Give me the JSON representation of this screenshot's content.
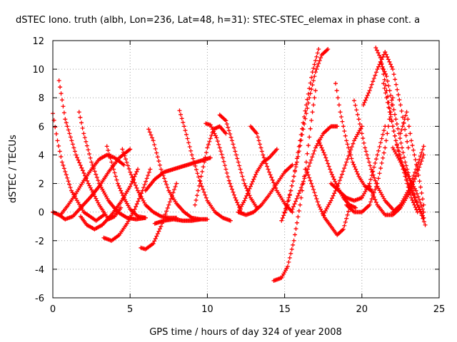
{
  "chart_data": {
    "type": "scatter",
    "title": "dSTEC Iono. truth (albh, Lon=236, Lat=48, h=31): STEC-STEC_elemax in phase cont. a",
    "xlabel": "GPS time / hours of day 324 of year 2008",
    "ylabel": "dSTEC  / TECUs",
    "xlim": [
      0,
      25
    ],
    "ylim": [
      -6,
      12
    ],
    "xticks": [
      "0",
      "5",
      "10",
      "15",
      "20",
      "25"
    ],
    "yticks": [
      "-6",
      "-4",
      "-2",
      "0",
      "2",
      "4",
      "6",
      "8",
      "10",
      "12"
    ],
    "grid": true,
    "marker": "plus",
    "color": "#ff0000",
    "series": [
      {
        "x": [
          0.0,
          0.3,
          0.6,
          1.2,
          2.0,
          2.8,
          3.3
        ],
        "y": [
          6.9,
          5.0,
          3.5,
          1.5,
          0.0,
          -0.6,
          -0.2
        ]
      },
      {
        "x": [
          0.4,
          0.8,
          1.5,
          2.3,
          3.0,
          3.6,
          4.0,
          4.4
        ],
        "y": [
          9.2,
          6.5,
          4.0,
          2.0,
          0.5,
          -0.5,
          -0.3,
          0.3
        ]
      },
      {
        "x": [
          0.0,
          0.4,
          0.8,
          1.3,
          1.8,
          2.4,
          3.0,
          3.6,
          4.3,
          5.0
        ],
        "y": [
          0.0,
          -0.2,
          -0.5,
          -0.3,
          0.3,
          1.0,
          1.8,
          2.8,
          3.8,
          4.4
        ]
      },
      {
        "x": [
          0.5,
          1.0,
          1.5,
          2.0,
          2.5,
          3.0,
          3.5,
          4.0,
          4.6
        ],
        "y": [
          -0.2,
          0.5,
          1.3,
          2.2,
          3.0,
          3.7,
          4.0,
          3.8,
          3.3
        ]
      },
      {
        "x": [
          1.7,
          2.0,
          2.5,
          3.0,
          3.6,
          4.2,
          4.8,
          5.4,
          6.0
        ],
        "y": [
          7.0,
          5.5,
          3.5,
          2.0,
          0.8,
          0.0,
          -0.4,
          -0.5,
          -0.4
        ]
      },
      {
        "x": [
          1.8,
          2.2,
          2.7,
          3.2,
          3.8,
          4.4,
          5.0,
          5.5
        ],
        "y": [
          -0.3,
          -0.9,
          -1.2,
          -0.9,
          -0.2,
          0.7,
          1.8,
          3.0
        ]
      },
      {
        "x": [
          3.5,
          3.8,
          4.2,
          4.6,
          5.0,
          5.5,
          6.0
        ],
        "y": [
          4.6,
          3.5,
          2.0,
          1.0,
          0.2,
          -0.3,
          -0.4
        ]
      },
      {
        "x": [
          3.3,
          3.8,
          4.3,
          4.8,
          5.3,
          5.8,
          6.3
        ],
        "y": [
          -1.8,
          -2.0,
          -1.6,
          -0.8,
          0.2,
          1.5,
          3.0
        ]
      },
      {
        "x": [
          4.5,
          5.0,
          5.5,
          6.0,
          6.5,
          7.0,
          7.5,
          8.0
        ],
        "y": [
          4.4,
          2.8,
          1.5,
          0.5,
          0.0,
          -0.3,
          -0.4,
          -0.4
        ]
      },
      {
        "x": [
          5.7,
          6.0,
          6.5,
          7.0,
          7.5,
          8.0
        ],
        "y": [
          -2.5,
          -2.6,
          -2.2,
          -1.0,
          0.5,
          2.0
        ]
      },
      {
        "x": [
          6.2,
          6.5,
          7.0,
          7.5,
          8.0,
          8.5,
          9.0,
          9.5
        ],
        "y": [
          5.8,
          5.0,
          3.0,
          1.5,
          0.6,
          0.0,
          -0.4,
          -0.5
        ]
      },
      {
        "x": [
          6.6,
          7.2,
          7.8,
          8.4,
          9.0,
          9.6,
          10.0
        ],
        "y": [
          -0.8,
          -0.6,
          -0.5,
          -0.6,
          -0.6,
          -0.5,
          -0.5
        ]
      },
      {
        "x": [
          6.0,
          6.6,
          7.2,
          7.8,
          8.4,
          9.0,
          9.6,
          10.2
        ],
        "y": [
          1.5,
          2.3,
          2.8,
          3.0,
          3.2,
          3.4,
          3.6,
          3.8
        ]
      },
      {
        "x": [
          8.2,
          8.5,
          9.0,
          9.5,
          10.0,
          10.5,
          11.0,
          11.5
        ],
        "y": [
          7.1,
          6.0,
          4.0,
          2.2,
          0.8,
          0.0,
          -0.4,
          -0.6
        ]
      },
      {
        "x": [
          9.2,
          9.6,
          10.0,
          10.4,
          10.8,
          11.2
        ],
        "y": [
          0.5,
          2.5,
          4.5,
          5.8,
          6.0,
          5.5
        ]
      },
      {
        "x": [
          9.9,
          10.2,
          10.6,
          11.0,
          11.4,
          11.8,
          12.2
        ],
        "y": [
          6.2,
          6.1,
          5.2,
          3.8,
          2.2,
          1.0,
          0.0
        ]
      },
      {
        "x": [
          10.8,
          11.2,
          11.6,
          12.0,
          12.4,
          12.8,
          13.2
        ],
        "y": [
          6.8,
          6.4,
          5.0,
          3.5,
          2.0,
          1.0,
          0.3
        ]
      },
      {
        "x": [
          12.0,
          12.4,
          12.8,
          13.2,
          13.6,
          14.0,
          14.5
        ],
        "y": [
          0.0,
          0.8,
          1.8,
          2.8,
          3.5,
          3.8,
          4.4
        ]
      },
      {
        "x": [
          12.8,
          13.2,
          13.6,
          14.0,
          14.5,
          15.0,
          15.5
        ],
        "y": [
          6.0,
          5.5,
          4.0,
          2.8,
          1.5,
          0.6,
          0.0
        ]
      },
      {
        "x": [
          12.0,
          12.5,
          13.0,
          13.5,
          14.0,
          14.5,
          15.0,
          15.5
        ],
        "y": [
          0.0,
          -0.2,
          0.0,
          0.5,
          1.2,
          2.0,
          2.8,
          3.3
        ]
      },
      {
        "x": [
          14.3,
          14.8,
          15.2,
          15.6,
          16.0,
          16.4,
          16.8,
          17.0
        ],
        "y": [
          -4.8,
          -4.6,
          -3.8,
          -2.0,
          0.5,
          3.5,
          7.0,
          8.5
        ]
      },
      {
        "x": [
          14.8,
          15.2,
          15.6,
          16.0,
          16.4,
          16.8,
          17.2
        ],
        "y": [
          -0.6,
          0.5,
          2.5,
          5.0,
          7.5,
          9.8,
          11.4
        ]
      },
      {
        "x": [
          15.0,
          15.4,
          15.8,
          16.2,
          16.6,
          17.0,
          17.4,
          17.8
        ],
        "y": [
          0.0,
          1.5,
          3.5,
          5.8,
          8.0,
          9.8,
          11.0,
          11.4
        ]
      },
      {
        "x": [
          15.5,
          16.0,
          16.5,
          17.0,
          17.5,
          18.0,
          18.4
        ],
        "y": [
          0.2,
          1.5,
          3.0,
          4.5,
          5.5,
          6.0,
          6.0
        ]
      },
      {
        "x": [
          16.4,
          16.8,
          17.2,
          17.6,
          18.0,
          18.4,
          18.8,
          19.2
        ],
        "y": [
          3.0,
          1.8,
          0.5,
          -0.4,
          -1.0,
          -1.6,
          -1.2,
          0.3
        ]
      },
      {
        "x": [
          17.2,
          17.6,
          18.0,
          18.4,
          18.8,
          19.2,
          19.6
        ],
        "y": [
          5.0,
          4.0,
          2.8,
          1.8,
          1.0,
          0.5,
          0.3
        ]
      },
      {
        "x": [
          17.5,
          18.0,
          18.5,
          19.0,
          19.5,
          20.0
        ],
        "y": [
          -0.2,
          0.8,
          2.0,
          3.5,
          5.0,
          6.0
        ]
      },
      {
        "x": [
          18.3,
          18.6,
          19.0,
          19.4,
          19.8,
          20.2,
          20.6
        ],
        "y": [
          9.0,
          7.0,
          5.0,
          3.5,
          2.5,
          1.8,
          1.5
        ]
      },
      {
        "x": [
          19.5,
          19.8,
          20.2,
          20.6,
          21.0,
          21.5,
          22.0
        ],
        "y": [
          7.8,
          6.5,
          4.5,
          3.0,
          1.8,
          0.8,
          0.2
        ]
      },
      {
        "x": [
          18.0,
          18.5,
          19.0,
          19.5,
          20.0,
          20.5,
          21.0,
          21.5
        ],
        "y": [
          2.0,
          1.5,
          1.0,
          0.8,
          1.0,
          2.0,
          4.0,
          6.0
        ]
      },
      {
        "x": [
          19.0,
          19.5,
          20.0,
          20.5,
          21.0,
          21.5,
          22.0
        ],
        "y": [
          0.5,
          0.0,
          0.0,
          0.5,
          2.0,
          4.5,
          8.0
        ]
      },
      {
        "x": [
          20.1,
          20.5,
          21.0,
          21.5,
          22.0,
          22.5,
          23.0
        ],
        "y": [
          7.5,
          8.5,
          10.0,
          11.2,
          10.0,
          7.5,
          4.5
        ]
      },
      {
        "x": [
          20.9,
          21.2,
          21.6,
          22.0,
          22.4,
          22.8,
          23.2,
          23.6
        ],
        "y": [
          11.5,
          10.8,
          8.5,
          6.0,
          4.0,
          2.5,
          1.0,
          0.0
        ]
      },
      {
        "x": [
          21.2,
          21.6,
          22.0,
          22.4,
          22.8,
          23.2,
          23.6,
          24.0
        ],
        "y": [
          10.5,
          9.5,
          7.5,
          5.5,
          3.5,
          2.0,
          0.5,
          -0.4
        ]
      },
      {
        "x": [
          21.4,
          21.8,
          22.2,
          22.6,
          23.0,
          23.4,
          23.8,
          24.1
        ],
        "y": [
          9.0,
          7.0,
          5.0,
          3.5,
          2.0,
          1.0,
          0.0,
          -0.9
        ]
      },
      {
        "x": [
          20.5,
          21.0,
          21.5,
          22.0,
          22.5,
          23.0,
          23.5,
          24.0
        ],
        "y": [
          1.8,
          0.5,
          -0.2,
          -0.2,
          0.3,
          1.2,
          2.5,
          4.0
        ]
      },
      {
        "x": [
          22.5,
          22.9,
          23.2,
          23.6,
          24.0
        ],
        "y": [
          5.5,
          7.0,
          5.0,
          3.0,
          0.5
        ]
      },
      {
        "x": [
          22.0,
          22.5,
          23.0,
          23.5,
          24.0
        ],
        "y": [
          0.0,
          0.5,
          1.5,
          3.0,
          4.6
        ]
      },
      {
        "x": [
          22.0,
          22.5,
          23.0,
          23.5,
          24.0
        ],
        "y": [
          4.5,
          3.5,
          2.5,
          1.5,
          0.0
        ]
      }
    ]
  }
}
